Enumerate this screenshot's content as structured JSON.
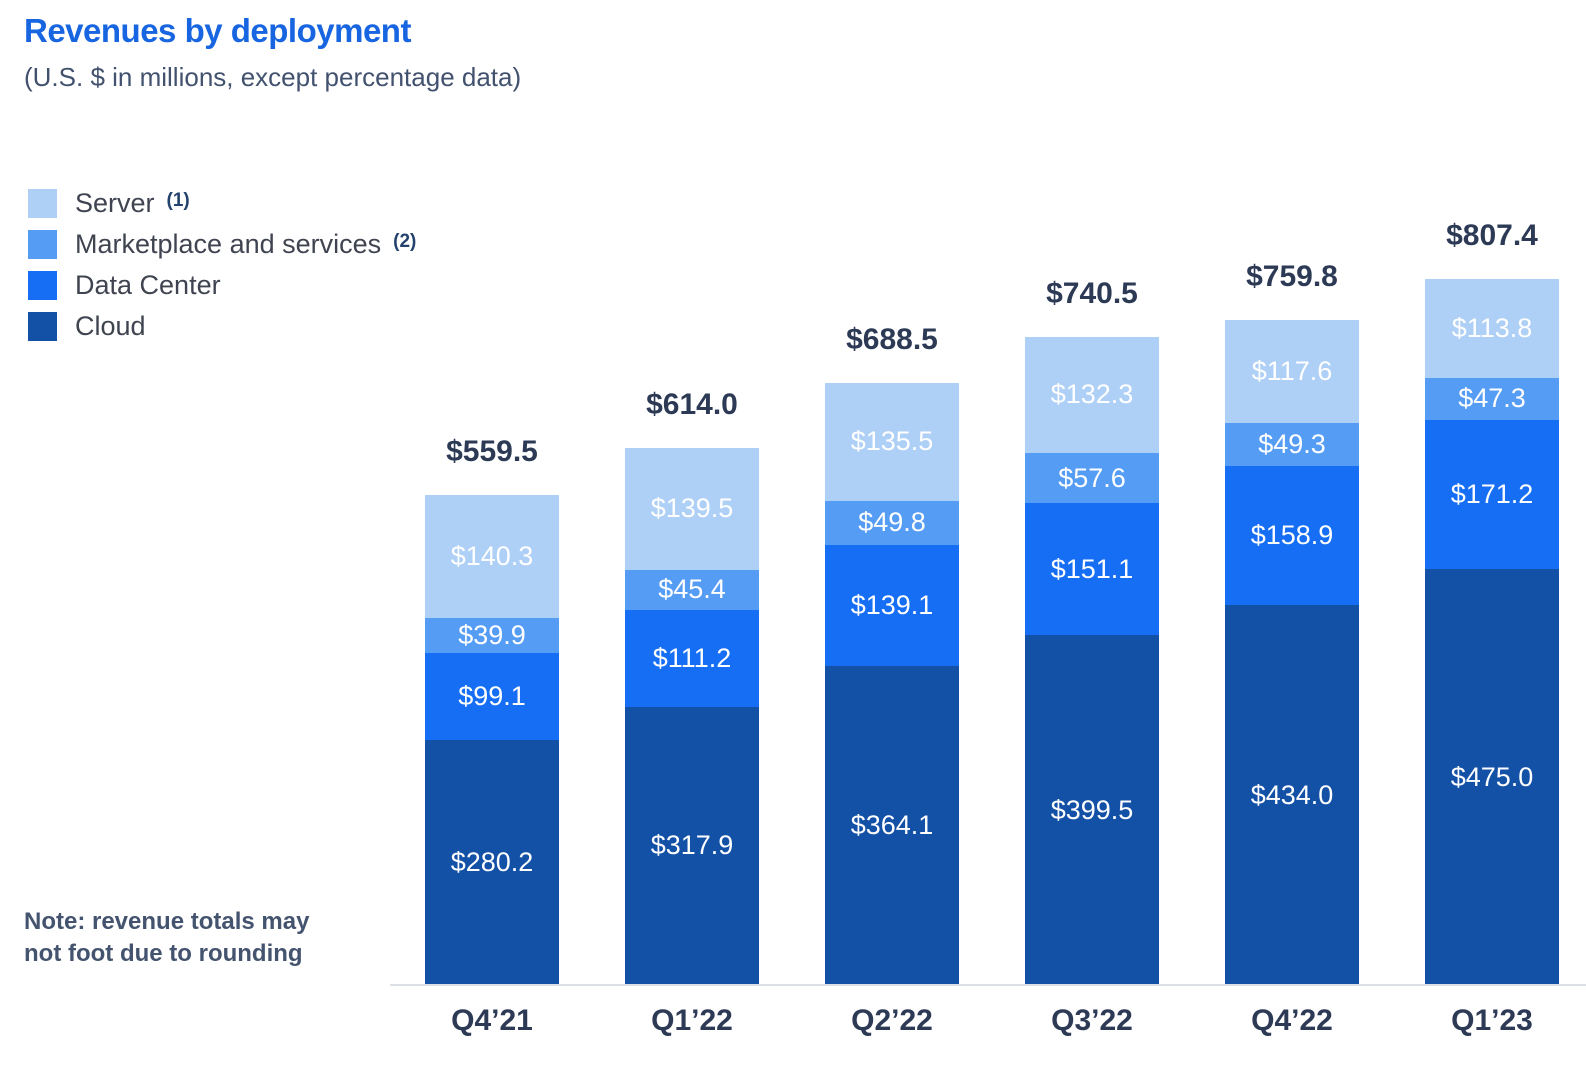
{
  "header": {
    "title": "Revenues by deployment",
    "subtitle": "(U.S. $ in millions, except percentage data)"
  },
  "note": {
    "line1": "Note: revenue totals may",
    "line2": "not foot due to rounding"
  },
  "legend": [
    {
      "label": "Server",
      "sup": "(1)",
      "color": "#AFD0F6"
    },
    {
      "label": "Marketplace and services",
      "sup": "(2)",
      "color": "#549CF4"
    },
    {
      "label": "Data Center",
      "sup": "",
      "color": "#156EF3"
    },
    {
      "label": "Cloud",
      "sup": "",
      "color": "#1351A7"
    }
  ],
  "chart_data": {
    "type": "bar",
    "stacked": true,
    "title": "Revenues by deployment",
    "subtitle": "(U.S. $ in millions, except percentage data)",
    "unit": "U.S. $ millions",
    "currency_prefix": "$",
    "categories": [
      "Q4’21",
      "Q1’22",
      "Q2’22",
      "Q3’22",
      "Q4’22",
      "Q1’23"
    ],
    "series": [
      {
        "name": "Server",
        "color": "#AFD0F6",
        "values": [
          140.3,
          139.5,
          135.5,
          132.3,
          117.6,
          113.8
        ]
      },
      {
        "name": "Marketplace and services",
        "color": "#549CF4",
        "values": [
          39.9,
          45.4,
          49.8,
          57.6,
          49.3,
          47.3
        ]
      },
      {
        "name": "Data Center",
        "color": "#156EF3",
        "values": [
          99.1,
          111.2,
          139.1,
          151.1,
          158.9,
          171.2
        ]
      },
      {
        "name": "Cloud",
        "color": "#1351A7",
        "values": [
          280.2,
          317.9,
          364.1,
          399.5,
          434.0,
          475.0
        ]
      }
    ],
    "totals": [
      559.5,
      614.0,
      688.5,
      740.5,
      759.8,
      807.4
    ],
    "legend_position": "top-left",
    "value_axis_visible": false,
    "grid": false,
    "bar_value_labels": "inside-white",
    "total_labels": "above-bars",
    "baseline_color": "#DCDFE3",
    "label_color": "#2D3A55"
  }
}
